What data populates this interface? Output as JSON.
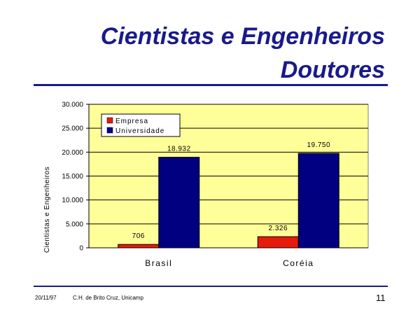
{
  "slide": {
    "title_line1": "Cientistas e Engenheiros",
    "title_line2": "Doutores",
    "footer_date": "20/11/97",
    "footer_credit": "C.H. de Brito Cruz, Unicamp",
    "page_number": "11"
  },
  "colors": {
    "title": "#1a1a8c",
    "plot_background": "#ffff99",
    "empresa": "#e81a0c",
    "universidade": "#000080"
  },
  "chart_data": {
    "type": "bar",
    "title": "",
    "ylabel": "Cientistas e Engenheiros",
    "xlabel": "",
    "categories": [
      "Brasil",
      "Coréia"
    ],
    "series": [
      {
        "name": "Empresa",
        "values": [
          706,
          2326
        ],
        "labels": [
          "706",
          "2.326"
        ]
      },
      {
        "name": "Universidade",
        "values": [
          18932,
          19750
        ],
        "labels": [
          "18.932",
          "19.750"
        ]
      }
    ],
    "ylim": [
      0,
      30000
    ],
    "yticks": [
      0,
      5000,
      10000,
      15000,
      20000,
      25000,
      30000
    ],
    "ytick_labels": [
      "0",
      "5.000",
      "10.000",
      "15.000",
      "20.000",
      "25.000",
      "30.000"
    ],
    "grid": true,
    "legend_position": "top-left"
  }
}
